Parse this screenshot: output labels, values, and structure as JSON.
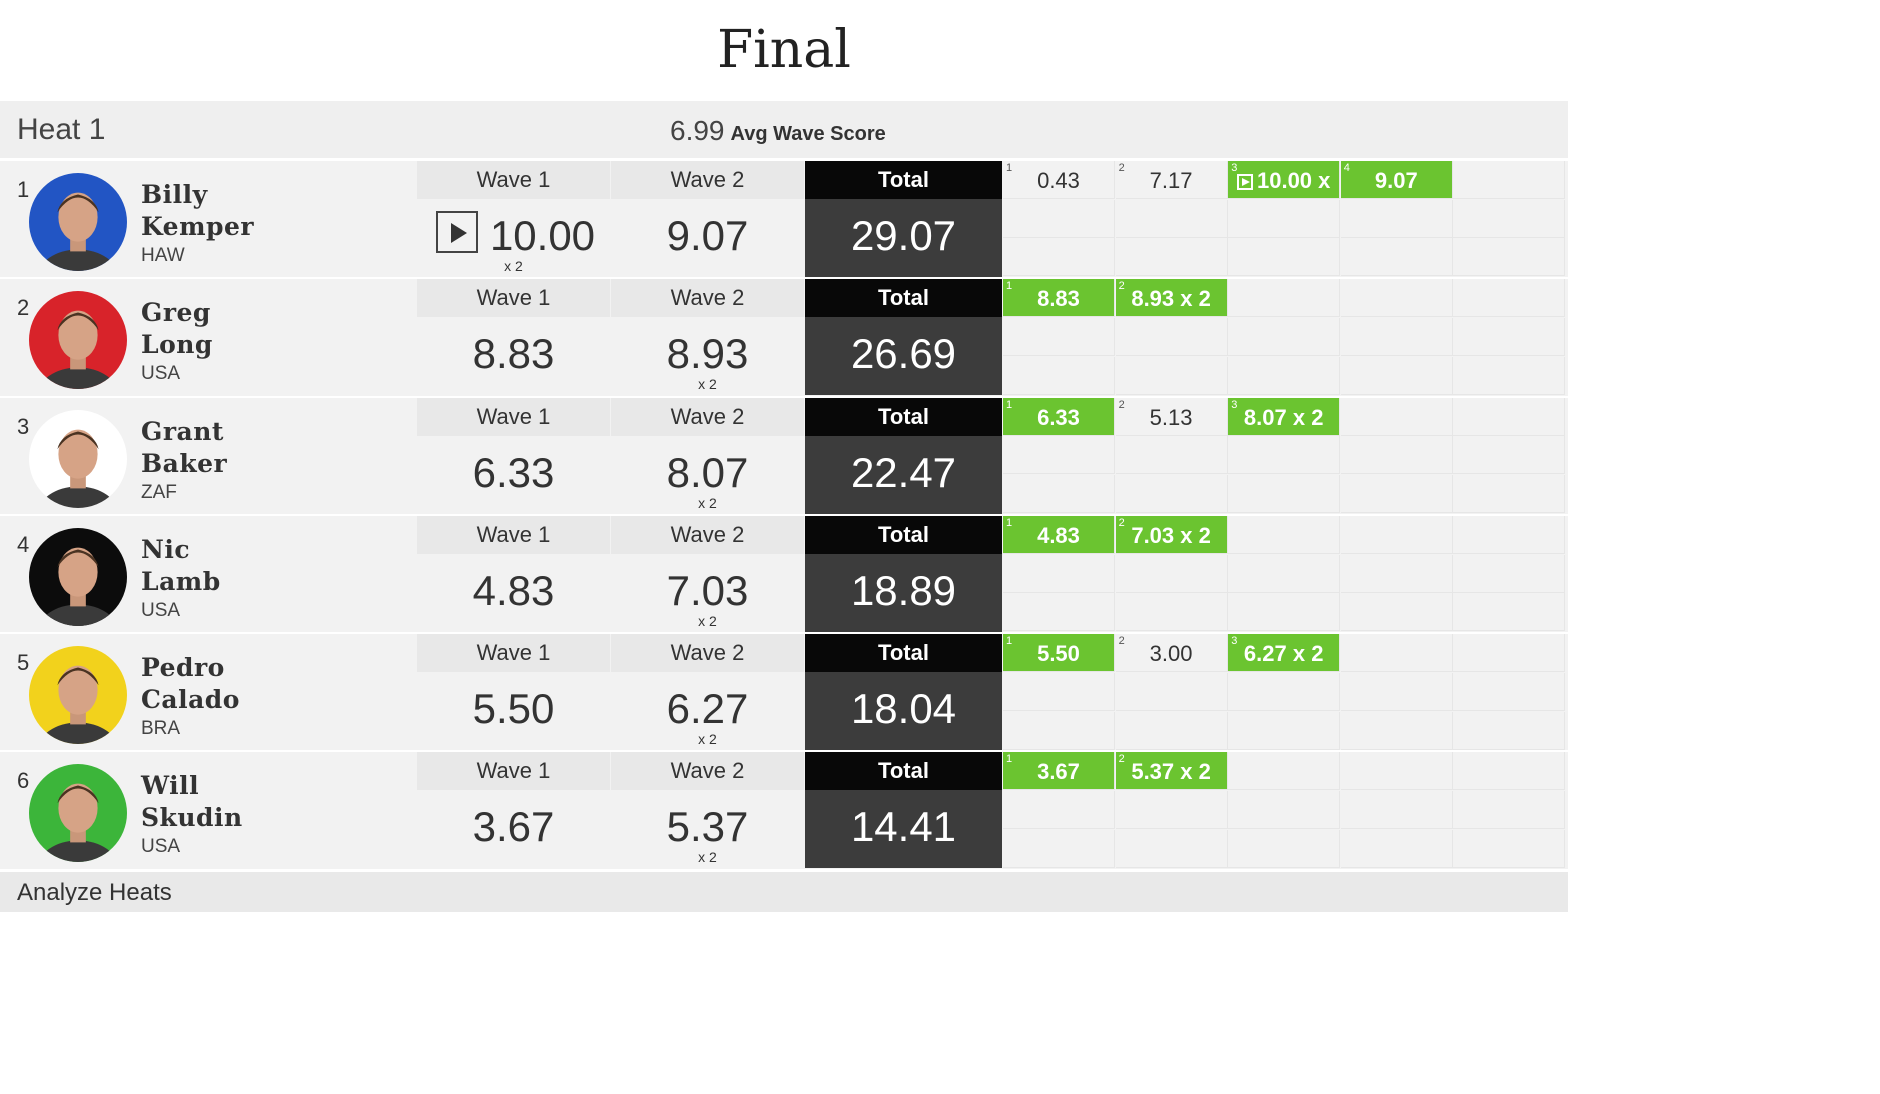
{
  "title": "Final",
  "heat": {
    "name": "Heat 1",
    "avg_value": "6.99",
    "avg_label": "Avg Wave Score"
  },
  "labels": {
    "wave1": "Wave 1",
    "wave2": "Wave 2",
    "total": "Total",
    "x2": "x 2"
  },
  "surfers": [
    {
      "rank": "1",
      "first": "Billy",
      "last": "Kemper",
      "country": "HAW",
      "avatar_bg": "#2255c4",
      "wave1": "10.00",
      "wave2": "9.07",
      "x2_on": "wave1",
      "has_play": true,
      "total": "29.07",
      "scores": [
        {
          "n": "1",
          "v": "0.43",
          "green": false
        },
        {
          "n": "2",
          "v": "7.17",
          "green": false
        },
        {
          "n": "3",
          "v": "10.00 x",
          "green": true,
          "play": true
        },
        {
          "n": "4",
          "v": "9.07",
          "green": true
        }
      ]
    },
    {
      "rank": "2",
      "first": "Greg",
      "last": "Long",
      "country": "USA",
      "avatar_bg": "#d8232a",
      "wave1": "8.83",
      "wave2": "8.93",
      "x2_on": "wave2",
      "has_play": false,
      "total": "26.69",
      "scores": [
        {
          "n": "1",
          "v": "8.83",
          "green": true
        },
        {
          "n": "2",
          "v": "8.93 x 2",
          "green": true
        }
      ]
    },
    {
      "rank": "3",
      "first": "Grant",
      "last": "Baker",
      "country": "ZAF",
      "avatar_bg": "#ffffff",
      "wave1": "6.33",
      "wave2": "8.07",
      "x2_on": "wave2",
      "has_play": false,
      "total": "22.47",
      "scores": [
        {
          "n": "1",
          "v": "6.33",
          "green": true
        },
        {
          "n": "2",
          "v": "5.13",
          "green": false
        },
        {
          "n": "3",
          "v": "8.07 x 2",
          "green": true
        }
      ]
    },
    {
      "rank": "4",
      "first": "Nic",
      "last": "Lamb",
      "country": "USA",
      "avatar_bg": "#0c0c0c",
      "wave1": "4.83",
      "wave2": "7.03",
      "x2_on": "wave2",
      "has_play": false,
      "total": "18.89",
      "scores": [
        {
          "n": "1",
          "v": "4.83",
          "green": true
        },
        {
          "n": "2",
          "v": "7.03 x 2",
          "green": true
        }
      ]
    },
    {
      "rank": "5",
      "first": "Pedro",
      "last": "Calado",
      "country": "BRA",
      "avatar_bg": "#f2d21c",
      "wave1": "5.50",
      "wave2": "6.27",
      "x2_on": "wave2",
      "has_play": false,
      "total": "18.04",
      "scores": [
        {
          "n": "1",
          "v": "5.50",
          "green": true
        },
        {
          "n": "2",
          "v": "3.00",
          "green": false
        },
        {
          "n": "3",
          "v": "6.27 x 2",
          "green": true
        }
      ]
    },
    {
      "rank": "6",
      "first": "Will",
      "last": "Skudin",
      "country": "USA",
      "avatar_bg": "#3cb53a",
      "wave1": "3.67",
      "wave2": "5.37",
      "x2_on": "wave2",
      "has_play": false,
      "total": "14.41",
      "scores": [
        {
          "n": "1",
          "v": "3.67",
          "green": true
        },
        {
          "n": "2",
          "v": "5.37 x 2",
          "green": true
        }
      ]
    }
  ],
  "footer": {
    "label": "Analyze Heats"
  }
}
